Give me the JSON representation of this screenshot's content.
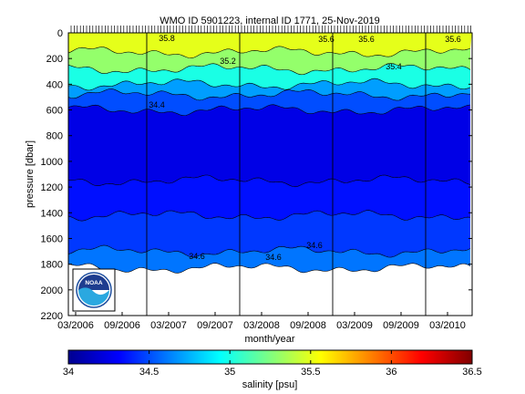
{
  "chart_data": {
    "type": "heatmap",
    "title": "WMO ID 5901223, internal ID 1771, 25-Nov-2019",
    "xlabel": "month/year",
    "ylabel": "pressure [dbar]",
    "x_ticks": [
      "03/2006",
      "09/2006",
      "03/2007",
      "09/2007",
      "03/2008",
      "09/2008",
      "03/2009",
      "09/2009",
      "03/2010"
    ],
    "y_ticks": [
      0,
      200,
      400,
      600,
      800,
      1000,
      1200,
      1400,
      1600,
      1800,
      2000,
      2200
    ],
    "ylim": [
      0,
      2200
    ],
    "y_reversed": true,
    "colorbar": {
      "label": "salinity [psu]",
      "ticks": [
        34,
        34.5,
        35,
        35.5,
        36,
        36.5
      ],
      "range": [
        34,
        36.5
      ]
    },
    "salinity_bands": [
      {
        "from_dbar": 0,
        "to_dbar": 150,
        "salinity": 35.5
      },
      {
        "from_dbar": 150,
        "to_dbar": 280,
        "salinity": 35.3
      },
      {
        "from_dbar": 280,
        "to_dbar": 400,
        "salinity": 35.0
      },
      {
        "from_dbar": 400,
        "to_dbar": 480,
        "salinity": 34.7
      },
      {
        "from_dbar": 480,
        "to_dbar": 600,
        "salinity": 34.5
      },
      {
        "from_dbar": 600,
        "to_dbar": 1150,
        "salinity": 34.25
      },
      {
        "from_dbar": 1150,
        "to_dbar": 1420,
        "salinity": 34.35
      },
      {
        "from_dbar": 1420,
        "to_dbar": 1700,
        "salinity": 34.45
      },
      {
        "from_dbar": 1700,
        "to_dbar": 1830,
        "salinity": 34.6
      }
    ],
    "contour_labels": [
      "34.4",
      "34.6",
      "34.6",
      "34.6",
      "35.2",
      "35.4",
      "35.6",
      "35.6",
      "35.8",
      "35.6"
    ],
    "legend_placement": "none",
    "grid": false
  },
  "logo": {
    "text": "NOAA"
  }
}
